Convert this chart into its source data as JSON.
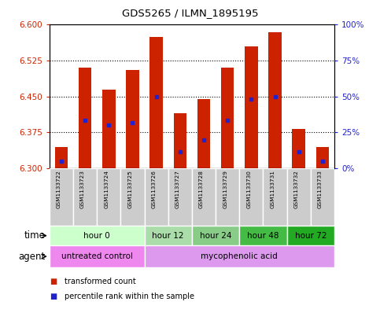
{
  "title": "GDS5265 / ILMN_1895195",
  "samples": [
    "GSM1133722",
    "GSM1133723",
    "GSM1133724",
    "GSM1133725",
    "GSM1133726",
    "GSM1133727",
    "GSM1133728",
    "GSM1133729",
    "GSM1133730",
    "GSM1133731",
    "GSM1133732",
    "GSM1133733"
  ],
  "bar_tops": [
    6.345,
    6.51,
    6.465,
    6.505,
    6.575,
    6.415,
    6.445,
    6.51,
    6.555,
    6.585,
    6.382,
    6.345
  ],
  "bar_bottom": 6.3,
  "blue_positions": [
    6.315,
    6.4,
    6.39,
    6.395,
    6.45,
    6.335,
    6.36,
    6.4,
    6.445,
    6.45,
    6.335,
    6.315
  ],
  "ylim_left": [
    6.3,
    6.6
  ],
  "ylim_right": [
    0,
    100
  ],
  "yticks_left": [
    6.3,
    6.375,
    6.45,
    6.525,
    6.6
  ],
  "yticks_right": [
    0,
    25,
    50,
    75,
    100
  ],
  "ytick_labels_right": [
    "0%",
    "25%",
    "50%",
    "75%",
    "100%"
  ],
  "bar_color": "#cc2200",
  "blue_color": "#2222cc",
  "grid_color": "#000000",
  "time_groups": [
    {
      "label": "hour 0",
      "start": 0,
      "end": 4,
      "color": "#ccffcc"
    },
    {
      "label": "hour 12",
      "start": 4,
      "end": 6,
      "color": "#aaddaa"
    },
    {
      "label": "hour 24",
      "start": 6,
      "end": 8,
      "color": "#88cc88"
    },
    {
      "label": "hour 48",
      "start": 8,
      "end": 10,
      "color": "#44bb44"
    },
    {
      "label": "hour 72",
      "start": 10,
      "end": 12,
      "color": "#22aa22"
    }
  ],
  "agent_groups": [
    {
      "label": "untreated control",
      "start": 0,
      "end": 4,
      "color": "#ee88ee"
    },
    {
      "label": "mycophenolic acid",
      "start": 4,
      "end": 12,
      "color": "#dd99ee"
    }
  ],
  "bar_width": 0.55,
  "background_color": "#ffffff",
  "ytick_color_left": "#cc2200",
  "ytick_color_right": "#2222cc",
  "time_row_label": "time",
  "agent_row_label": "agent",
  "legend_tc_color": "#cc2200",
  "legend_pr_color": "#2222cc",
  "legend_tc_label": "transformed count",
  "legend_pr_label": "percentile rank within the sample"
}
